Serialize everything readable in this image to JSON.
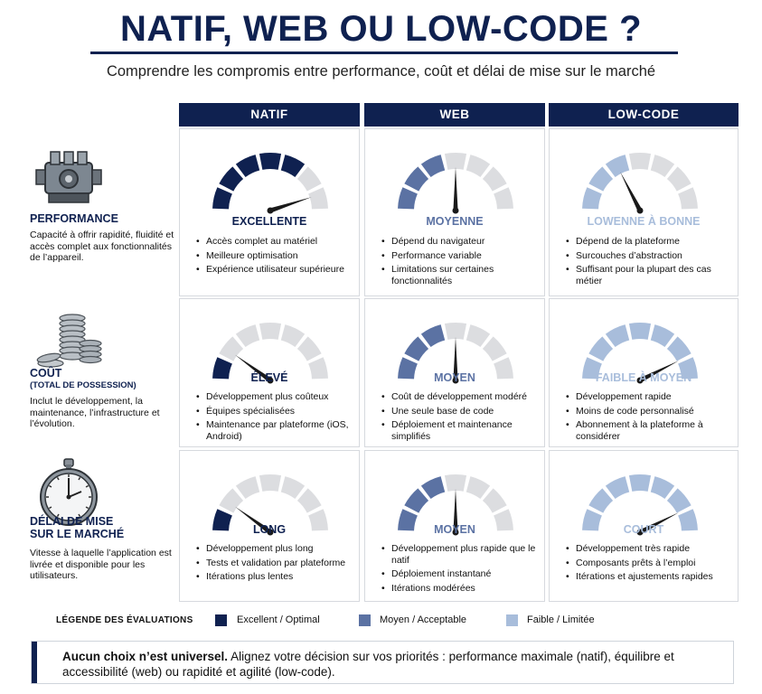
{
  "header": {
    "title": "NATIF, WEB OU LOW-CODE ?",
    "subtitle": "Comprendre les compromis entre performance, coût et délai de mise sur le marché"
  },
  "columns": [
    "NATIF",
    "WEB",
    "LOW-CODE"
  ],
  "colors": {
    "dark": "#0f2150",
    "medium": "#5b72a3",
    "light": "#a8bddb",
    "empty": "#dcdde0"
  },
  "rows": [
    {
      "icon": "engine-icon",
      "title": "PERFORMANCE",
      "subtitle": "",
      "description": "Capacité à offrir rapidité, fluidité et accès complet aux fonctionnalités de l’appareil.",
      "cells": [
        {
          "rating": "EXCELLENTE",
          "level": "dark",
          "filled": 5,
          "needle": 0.9,
          "bullets": [
            "Accès complet au matériel",
            "Meilleure optimisation",
            "Expérience utilisateur supérieure"
          ]
        },
        {
          "rating": "MOYENNE",
          "level": "medium",
          "filled": 3,
          "needle": 0.5,
          "bullets": [
            "Dépend du navigateur",
            "Performance variable",
            "Limitations sur certaines fonctionnalités"
          ]
        },
        {
          "rating": "LOWENNE À BONNE",
          "level": "light",
          "filled": 3,
          "needle": 0.35,
          "bullets": [
            "Dépend de la plateforme",
            "Surcouches d’abstraction",
            "Suffisant pour la plupart des cas métier"
          ]
        }
      ]
    },
    {
      "icon": "coins-icon",
      "title": "COÛT",
      "subtitle": "(TOTAL DE POSSESSION)",
      "description": "Inclut le développement, la maintenance, l’infrastructure et l’évolution.",
      "cells": [
        {
          "rating": "ÉLEVÉ",
          "level": "dark",
          "filled": 1,
          "needle": 0.2,
          "bullets": [
            "Développement plus coûteux",
            "Équipes spécialisées",
            "Maintenance par plateforme (iOS, Android)"
          ]
        },
        {
          "rating": "MOYEN",
          "level": "medium",
          "filled": 3,
          "needle": 0.5,
          "bullets": [
            "Coût de développement modéré",
            "Une seule base de code",
            "Déploiement et maintenance simplifiés"
          ]
        },
        {
          "rating": "FAIBLE À MOYEN",
          "level": "light",
          "filled": 7,
          "needle": 0.85,
          "bullets": [
            "Développement rapide",
            "Moins de code personnalisé",
            "Abonnement à la plateforme à considérer"
          ]
        }
      ]
    },
    {
      "icon": "stopwatch-icon",
      "title": "DÉLAI DE MISE\nSUR LE MARCHÉ",
      "subtitle": "",
      "description": "Vitesse à laquelle l’application est livrée et disponible pour les utilisateurs.",
      "cells": [
        {
          "rating": "LONG",
          "level": "dark",
          "filled": 1,
          "needle": 0.2,
          "bullets": [
            "Développement plus long",
            "Tests et validation par plateforme",
            "Itérations plus lentes"
          ]
        },
        {
          "rating": "MOYEN",
          "level": "medium",
          "filled": 3,
          "needle": 0.5,
          "bullets": [
            "Développement plus rapide que le natif",
            "Déploiement instantané",
            "Itérations modérées"
          ]
        },
        {
          "rating": "COURT",
          "level": "light",
          "filled": 7,
          "needle": 0.85,
          "bullets": [
            "Développement très rapide",
            "Composants prêts à l’emploi",
            "Itérations et ajustements rapides"
          ]
        }
      ]
    }
  ],
  "legend": {
    "title": "LÉGENDE DES ÉVALUATIONS",
    "items": [
      {
        "label": "Excellent / Optimal",
        "color": "#0f2150"
      },
      {
        "label": "Moyen / Acceptable",
        "color": "#5b72a3"
      },
      {
        "label": "Faible / Limitée",
        "color": "#a8bddb"
      }
    ]
  },
  "note": {
    "bold": "Aucun choix n’est universel.",
    "text": " Alignez votre décision sur vos priorités : performance maximale (natif), équilibre et accessibilité (web) ou rapidité et agilité (low-code)."
  }
}
